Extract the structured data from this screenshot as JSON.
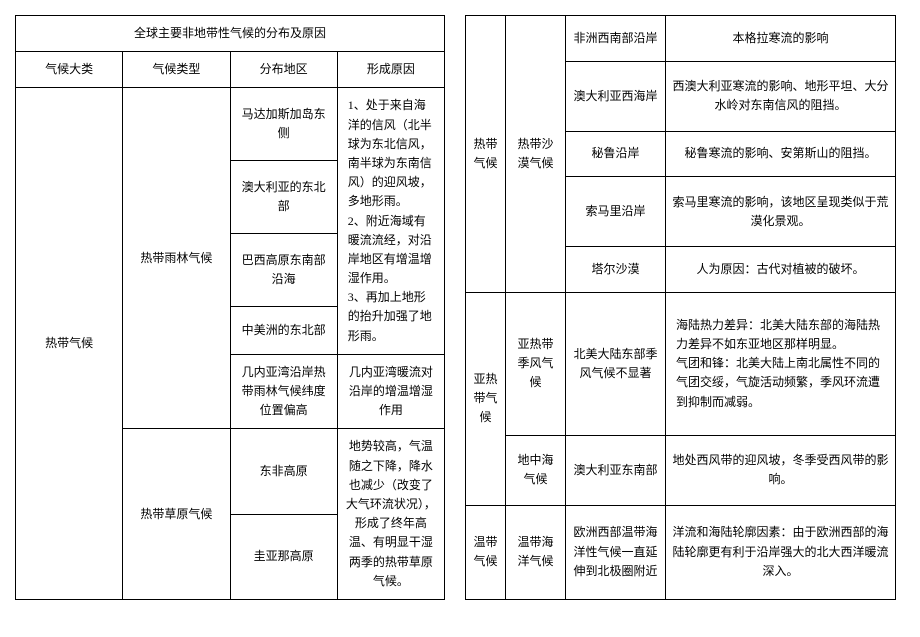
{
  "leftTable": {
    "title": "全球主要非地带性气候的分布及原因",
    "headers": {
      "category": "气候大类",
      "type": "气候类型",
      "region": "分布地区",
      "reason": "形成原因"
    },
    "rows": {
      "tropical": "热带气候",
      "rainforest": "热带雨林气候",
      "madagascar": "马达加斯加岛东侧",
      "australia_ne": "澳大利亚的东北部",
      "brazil": "巴西高原东南部沿海",
      "central_america": "中美洲的东北部",
      "rainforest_reason": "1、处于来自海洋的信风（北半球为东北信风，南半球为东南信风）的迎风坡，多地形雨。\n2、附近海域有暖流流经，对沿岸地区有增温增湿作用。\n3、再加上地形的抬升加强了地形雨。",
      "guinea": "几内亚湾沿岸热带雨林气候纬度位置偏高",
      "guinea_reason": "几内亚湾暖流对沿岸的增温增湿作用",
      "savanna": "热带草原气候",
      "east_africa": "东非高原",
      "east_africa_reason": "地势较高，气温随之下降，降水也减少（改变了大气环流状况），形成了终年高温、有明显干湿两季的热带草原气候。",
      "guyana": "圭亚那高原"
    }
  },
  "rightTable": {
    "rows": {
      "tropical": "热带气候",
      "desert": "热带沙漠气候",
      "africa_sw": "非洲西南部沿岸",
      "africa_sw_reason": "本格拉寒流的影响",
      "australia_w": "澳大利亚西海岸",
      "australia_w_reason": "西澳大利亚寒流的影响、地形平坦、大分水岭对东南信风的阻挡。",
      "peru": "秘鲁沿岸",
      "peru_reason": "秘鲁寒流的影响、安第斯山的阻挡。",
      "somalia": "索马里沿岸",
      "somalia_reason": "索马里寒流的影响，该地区呈现类似于荒漠化景观。",
      "thar": "塔尔沙漠",
      "thar_reason": "人为原因：古代对植被的破坏。",
      "subtropical": "亚热带气候",
      "monsoon": "亚热带季风气候",
      "na_east": "北美大陆东部季风气候不显著",
      "na_east_reason": "海陆热力差异：北美大陆东部的海陆热力差异不如东亚地区那样明显。\n气团和锋：北美大陆上南北属性不同的气团交绥，气旋活动频繁，季风环流遭到抑制而减弱。",
      "mediterranean": "地中海气候",
      "australia_se": "澳大利亚东南部",
      "australia_se_reason": "地处西风带的迎风坡，冬季受西风带的影响。",
      "temperate": "温带气候",
      "oceanic": "温带海洋气候",
      "europe_w": "欧洲西部温带海洋性气候一直延伸到北极圈附近",
      "europe_w_reason": "洋流和海陆轮廓因素：由于欧洲西部的海陆轮廓更有利于沿岸强大的北大西洋暖流深入。"
    }
  }
}
